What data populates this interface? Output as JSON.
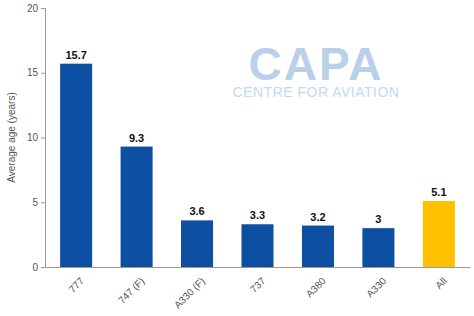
{
  "chart_data": {
    "type": "bar",
    "y_label": "Average age (years)",
    "annotations": [
      "CAPA",
      "CENTRE FOR AVIATION"
    ],
    "categories": [
      "777",
      "747 (F)",
      "A330 (F)",
      "737",
      "A380",
      "A330",
      "All"
    ],
    "values": [
      15.7,
      9.3,
      3.6,
      3.3,
      3.2,
      3,
      5.1
    ],
    "colors": [
      "#0d4fa3",
      "#0d4fa3",
      "#0d4fa3",
      "#0d4fa3",
      "#0d4fa3",
      "#0d4fa3",
      "#ffc000"
    ],
    "ylim": [
      0,
      20
    ],
    "yticks": [
      0,
      5,
      10,
      15,
      20
    ],
    "grid": false,
    "data_labels": true
  }
}
